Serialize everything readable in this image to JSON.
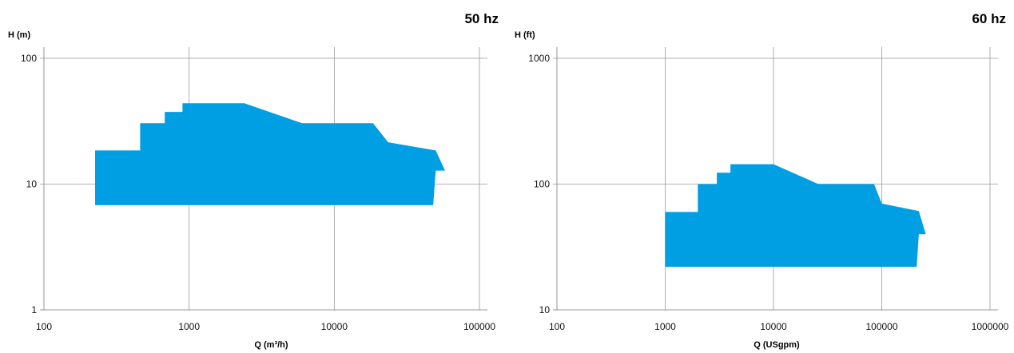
{
  "chart_data": [
    {
      "type": "area",
      "title": "50 hz",
      "ylabel": "H (m)",
      "xlabel": "Q (m³/h)",
      "x_scale": "log",
      "y_scale": "log",
      "xlim": [
        100,
        100000
      ],
      "ylim": [
        1,
        100
      ],
      "x_ticks": [
        100,
        1000,
        10000,
        100000
      ],
      "x_tick_labels": [
        "100",
        "1000",
        "10000",
        "100000"
      ],
      "y_ticks": [
        1,
        10,
        100
      ],
      "y_tick_labels": [
        "1",
        "10",
        "100"
      ],
      "grid": true,
      "fill_color": "#009fe3",
      "polygon": [
        {
          "x": 225,
          "y": 6.8
        },
        {
          "x": 225,
          "y": 18.5
        },
        {
          "x": 460,
          "y": 18.5
        },
        {
          "x": 460,
          "y": 30.5
        },
        {
          "x": 680,
          "y": 30.5
        },
        {
          "x": 680,
          "y": 37.5
        },
        {
          "x": 900,
          "y": 37.5
        },
        {
          "x": 900,
          "y": 44
        },
        {
          "x": 2400,
          "y": 44
        },
        {
          "x": 6000,
          "y": 30.5
        },
        {
          "x": 18500,
          "y": 30.5
        },
        {
          "x": 23500,
          "y": 21.5
        },
        {
          "x": 50000,
          "y": 18.5
        },
        {
          "x": 58000,
          "y": 12.8
        },
        {
          "x": 50000,
          "y": 12.8
        },
        {
          "x": 48000,
          "y": 6.8
        }
      ]
    },
    {
      "type": "area",
      "title": "60 hz",
      "ylabel": "H (ft)",
      "xlabel": "Q (USgpm)",
      "x_scale": "log",
      "y_scale": "log",
      "xlim": [
        100,
        1000000
      ],
      "ylim": [
        10,
        1000
      ],
      "x_ticks": [
        100,
        1000,
        10000,
        100000,
        1000000
      ],
      "x_tick_labels": [
        "100",
        "1000",
        "10000",
        "100000",
        "1000000"
      ],
      "y_ticks": [
        10,
        100,
        1000
      ],
      "y_tick_labels": [
        "10",
        "100",
        "1000"
      ],
      "grid": true,
      "fill_color": "#009fe3",
      "polygon": [
        {
          "x": 1000,
          "y": 22
        },
        {
          "x": 1000,
          "y": 60
        },
        {
          "x": 2000,
          "y": 60
        },
        {
          "x": 2000,
          "y": 100
        },
        {
          "x": 3000,
          "y": 100
        },
        {
          "x": 3000,
          "y": 123
        },
        {
          "x": 4000,
          "y": 123
        },
        {
          "x": 4000,
          "y": 144
        },
        {
          "x": 10000,
          "y": 144
        },
        {
          "x": 26000,
          "y": 100
        },
        {
          "x": 85000,
          "y": 100
        },
        {
          "x": 100000,
          "y": 70
        },
        {
          "x": 220000,
          "y": 61
        },
        {
          "x": 255000,
          "y": 40
        },
        {
          "x": 220000,
          "y": 40
        },
        {
          "x": 210000,
          "y": 22
        }
      ]
    }
  ]
}
